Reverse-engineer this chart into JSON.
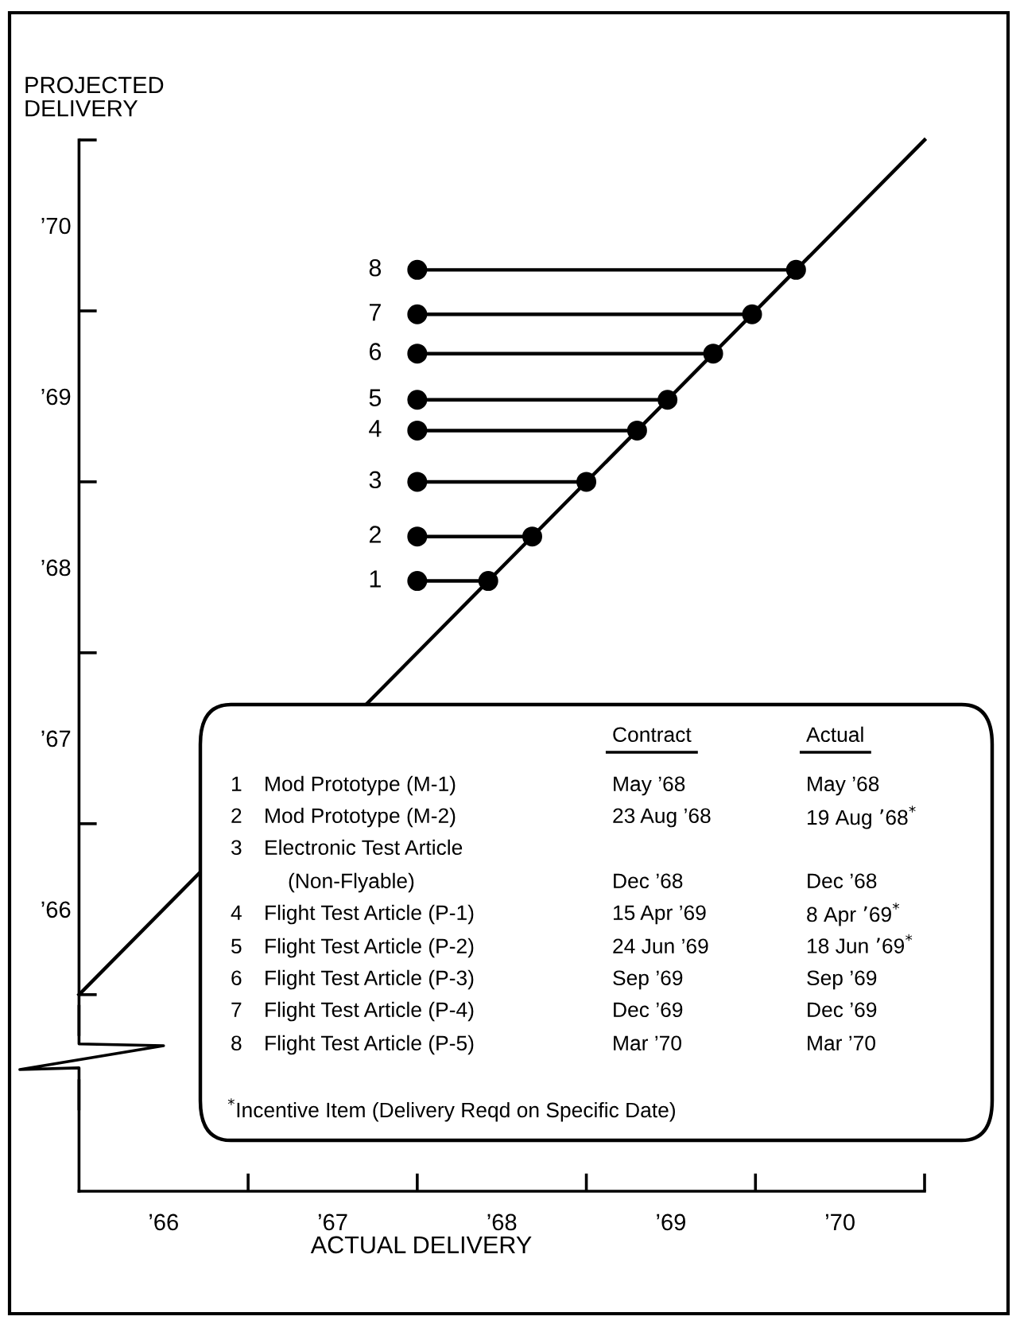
{
  "chart_data": {
    "type": "line",
    "xlabel": "ACTUAL DELIVERY",
    "ylabel": "PROJECTED\nDELIVERY",
    "xlim": [
      65.5,
      70.5
    ],
    "ylim": [
      64.35,
      70.5
    ],
    "xticks": [
      {
        "value": 66,
        "label": "’66"
      },
      {
        "value": 66.5,
        "label": null
      },
      {
        "value": 67,
        "label": "’67"
      },
      {
        "value": 67.5,
        "label": null
      },
      {
        "value": 68,
        "label": "’68"
      },
      {
        "value": 68.5,
        "label": null
      },
      {
        "value": 69,
        "label": "’69"
      },
      {
        "value": 69.5,
        "label": null
      },
      {
        "value": 70,
        "label": "’70"
      },
      {
        "value": 70.5,
        "label": null
      }
    ],
    "yticks": [
      {
        "value": 65.5,
        "label": null
      },
      {
        "value": 66,
        "label": "’66"
      },
      {
        "value": 66.5,
        "label": null
      },
      {
        "value": 67,
        "label": "’67"
      },
      {
        "value": 67.5,
        "label": null
      },
      {
        "value": 68,
        "label": "’68"
      },
      {
        "value": 68.5,
        "label": null
      },
      {
        "value": 69,
        "label": "’69"
      },
      {
        "value": 69.5,
        "label": null
      },
      {
        "value": 70,
        "label": "’70"
      },
      {
        "value": 70.5,
        "label": null
      }
    ],
    "series": [
      {
        "color": "#000000",
        "marker": "none",
        "x": [
          65.5,
          70.5
        ],
        "values": [
          65.5,
          70.5
        ]
      },
      {
        "name": "1",
        "color": "#000000",
        "marker": "circle",
        "x": [
          67.5,
          67.92
        ],
        "values": [
          67.92,
          67.92
        ]
      },
      {
        "name": "2",
        "color": "#000000",
        "marker": "circle",
        "x": [
          67.5,
          68.18
        ],
        "values": [
          68.18,
          68.18
        ]
      },
      {
        "name": "3",
        "color": "#000000",
        "marker": "circle",
        "x": [
          67.5,
          68.5
        ],
        "values": [
          68.5,
          68.5
        ]
      },
      {
        "name": "4",
        "color": "#000000",
        "marker": "circle",
        "x": [
          67.5,
          68.8
        ],
        "values": [
          68.8,
          68.8
        ]
      },
      {
        "name": "5",
        "color": "#000000",
        "marker": "circle",
        "x": [
          67.5,
          68.98
        ],
        "values": [
          68.98,
          68.98
        ]
      },
      {
        "name": "6",
        "color": "#000000",
        "marker": "circle",
        "x": [
          67.5,
          69.25
        ],
        "values": [
          69.25,
          69.25
        ]
      },
      {
        "name": "7",
        "color": "#000000",
        "marker": "circle",
        "x": [
          67.5,
          69.48
        ],
        "values": [
          69.48,
          69.48
        ]
      },
      {
        "name": "8",
        "color": "#000000",
        "marker": "circle",
        "x": [
          67.5,
          69.74
        ],
        "values": [
          69.74,
          69.74
        ]
      }
    ],
    "annotations": [
      "Contract",
      "Actual",
      "1",
      "Mod Prototype (M-1)",
      "May ’68",
      "May ’68",
      "2",
      "Mod Prototype (M-2)",
      "23 Aug ’68",
      "19 Aug ’68$^{*}$",
      "3",
      "Electronic Test Article",
      "(Non-Flyable)",
      "Dec ’68",
      "Dec ’68",
      "4",
      "Flight Test Article (P-1)",
      "15 Apr ’69",
      "8 Apr ’69$^{*}$",
      "5",
      "Flight Test Article (P-2)",
      "24 Jun ’69",
      "18 Jun ’69$^{*}$",
      "6",
      "Flight Test Article (P-3)",
      "Sep ’69",
      "Sep ’69",
      "7",
      "Flight Test Article (P-4)",
      "Dec ’69",
      "Dec ’69",
      "8",
      "Flight Test Article (P-5)",
      "Mar ’70",
      "Mar ’70",
      "$^{*}$Incentive Item (Delivery Reqd on Specific Date)"
    ]
  }
}
